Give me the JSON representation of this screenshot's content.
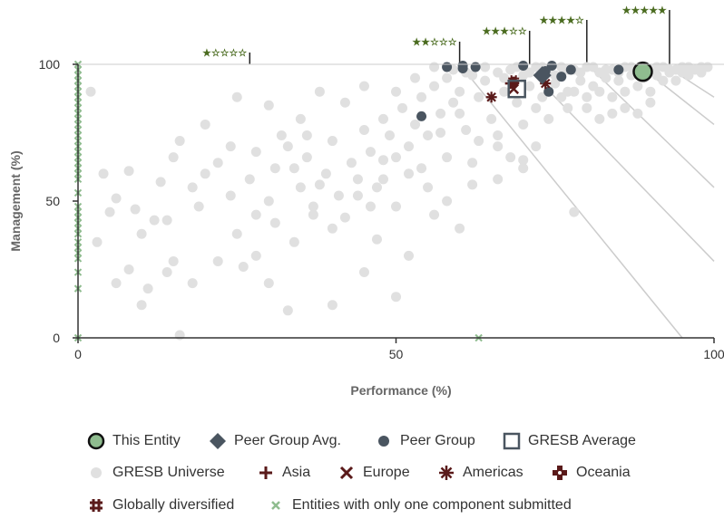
{
  "chart_data": {
    "type": "scatter",
    "xlabel": "Performance (%)",
    "ylabel": "Management (%)",
    "xlim": [
      0,
      100
    ],
    "ylim": [
      0,
      100
    ],
    "x_ticks": [
      "0",
      "50",
      "100"
    ],
    "y_ticks": [
      "0",
      "50",
      "100"
    ],
    "grid": false,
    "star_bands": [
      {
        "rating": 1,
        "label": "★☆☆☆☆",
        "boundary_x": 27
      },
      {
        "rating": 2,
        "label": "★★☆☆☆",
        "boundary_x": 60
      },
      {
        "rating": 3,
        "label": "★★★☆☆",
        "boundary_x": 71
      },
      {
        "rating": 4,
        "label": "★★★★☆",
        "boundary_x": 80
      },
      {
        "rating": 5,
        "label": "★★★★★",
        "boundary_x": 93
      }
    ],
    "series": [
      {
        "name": "This Entity",
        "color": "#8fbc8f",
        "points": [
          [
            88.8,
            97.3
          ]
        ]
      },
      {
        "name": "Peer Group Avg.",
        "color": "#4a5560",
        "points": [
          [
            73,
            96
          ]
        ]
      },
      {
        "name": "Peer Group",
        "color": "#4a5560",
        "points": [
          [
            58,
            99
          ],
          [
            60.5,
            99.5
          ],
          [
            60.5,
            98.5
          ],
          [
            62.5,
            99
          ],
          [
            70,
            99.5
          ],
          [
            73.5,
            97.5
          ],
          [
            74.5,
            99.5
          ],
          [
            76,
            95.5
          ],
          [
            77.5,
            98
          ],
          [
            74,
            90
          ],
          [
            85,
            98
          ],
          [
            54,
            81
          ]
        ]
      },
      {
        "name": "GRESB Average",
        "color": "#4a5560",
        "points": [
          [
            69,
            91
          ]
        ]
      },
      {
        "name": "GRESB Universe",
        "color": "#e0e0e0",
        "points": [
          [
            5,
            46
          ],
          [
            6,
            51
          ],
          [
            8,
            61
          ],
          [
            9,
            47
          ],
          [
            10,
            38
          ],
          [
            12,
            43
          ],
          [
            13,
            57
          ],
          [
            15,
            66
          ],
          [
            16,
            72
          ],
          [
            18,
            55
          ],
          [
            19,
            48
          ],
          [
            20,
            60
          ],
          [
            22,
            64
          ],
          [
            24,
            52
          ],
          [
            27,
            58
          ],
          [
            28,
            45
          ],
          [
            30,
            50
          ],
          [
            31,
            62
          ],
          [
            33,
            70
          ],
          [
            35,
            55
          ],
          [
            36,
            66
          ],
          [
            37,
            48
          ],
          [
            39,
            60
          ],
          [
            40,
            72
          ],
          [
            41,
            52
          ],
          [
            43,
            64
          ],
          [
            44,
            58
          ],
          [
            45,
            76
          ],
          [
            46,
            68
          ],
          [
            47,
            55
          ],
          [
            48,
            80
          ],
          [
            49,
            74
          ],
          [
            50,
            66
          ],
          [
            51,
            84
          ],
          [
            52,
            70
          ],
          [
            53,
            78
          ],
          [
            54,
            88
          ],
          [
            55,
            74
          ],
          [
            56,
            92
          ],
          [
            57,
            82
          ],
          [
            58,
            95
          ],
          [
            59,
            86
          ],
          [
            60,
            90
          ],
          [
            61,
            76
          ],
          [
            62,
            96
          ],
          [
            63,
            88
          ],
          [
            64,
            94
          ],
          [
            65,
            80
          ],
          [
            66,
            97
          ],
          [
            67,
            90
          ],
          [
            68,
            98
          ],
          [
            69,
            86
          ],
          [
            70,
            96
          ],
          [
            71,
            92
          ],
          [
            72,
            99
          ],
          [
            73,
            88
          ],
          [
            74,
            97
          ],
          [
            75,
            93
          ],
          [
            76,
            99
          ],
          [
            77,
            90
          ],
          [
            78,
            98
          ],
          [
            79,
            94
          ],
          [
            80,
            99
          ],
          [
            81,
            92
          ],
          [
            82,
            97
          ],
          [
            83,
            95
          ],
          [
            84,
            98
          ],
          [
            85,
            94
          ],
          [
            86,
            99
          ],
          [
            87,
            96
          ],
          [
            88,
            98
          ],
          [
            89,
            95
          ],
          [
            90,
            98
          ],
          [
            91,
            96
          ],
          [
            92,
            99
          ],
          [
            93,
            97
          ],
          [
            94,
            98
          ],
          [
            95,
            97
          ],
          [
            96,
            99
          ],
          [
            97,
            98
          ],
          [
            98,
            99
          ],
          [
            99,
            99
          ],
          [
            57,
            75
          ],
          [
            60,
            82
          ],
          [
            63,
            72
          ],
          [
            66,
            70
          ],
          [
            68,
            66
          ],
          [
            70,
            65
          ],
          [
            72,
            70
          ],
          [
            74,
            80
          ],
          [
            77,
            84
          ],
          [
            80,
            84
          ],
          [
            82,
            80
          ],
          [
            84,
            82
          ],
          [
            86,
            84
          ],
          [
            88,
            82
          ],
          [
            90,
            86
          ],
          [
            78,
            46
          ],
          [
            70,
            62
          ],
          [
            66,
            58
          ],
          [
            62,
            56
          ],
          [
            58,
            50
          ],
          [
            55,
            55
          ],
          [
            52,
            60
          ],
          [
            48,
            65
          ],
          [
            44,
            52
          ],
          [
            40,
            40
          ],
          [
            37,
            45
          ],
          [
            34,
            35
          ],
          [
            31,
            42
          ],
          [
            28,
            30
          ],
          [
            25,
            38
          ],
          [
            22,
            28
          ],
          [
            18,
            20
          ],
          [
            14,
            24
          ],
          [
            11,
            18
          ],
          [
            8,
            25
          ],
          [
            6,
            20
          ],
          [
            3,
            35
          ],
          [
            4,
            60
          ],
          [
            2,
            90
          ],
          [
            14,
            43
          ],
          [
            20,
            78
          ],
          [
            25,
            88
          ],
          [
            30,
            85
          ],
          [
            35,
            80
          ],
          [
            38,
            90
          ],
          [
            42,
            86
          ],
          [
            45,
            92
          ],
          [
            50,
            90
          ],
          [
            53,
            95
          ],
          [
            56,
            99
          ],
          [
            59,
            98
          ],
          [
            61,
            97
          ],
          [
            64,
            99
          ],
          [
            67,
            95
          ],
          [
            69,
            99
          ],
          [
            71,
            97
          ],
          [
            73,
            99
          ],
          [
            75,
            96
          ],
          [
            77,
            98
          ],
          [
            79,
            97
          ],
          [
            81,
            99
          ],
          [
            83,
            98
          ],
          [
            85,
            97
          ],
          [
            87,
            99
          ],
          [
            89,
            98
          ],
          [
            91,
            99
          ],
          [
            93,
            98
          ],
          [
            95,
            99
          ],
          [
            30,
            20
          ],
          [
            40,
            12
          ],
          [
            45,
            24
          ],
          [
            50,
            15
          ],
          [
            33,
            10
          ],
          [
            26,
            26
          ],
          [
            15,
            28
          ],
          [
            10,
            12
          ],
          [
            16,
            1
          ],
          [
            47,
            36
          ],
          [
            52,
            30
          ],
          [
            56,
            45
          ],
          [
            60,
            40
          ],
          [
            46,
            48
          ],
          [
            42,
            44
          ],
          [
            38,
            56
          ],
          [
            34,
            62
          ],
          [
            32,
            74
          ],
          [
            28,
            68
          ],
          [
            24,
            70
          ],
          [
            36,
            74
          ],
          [
            48,
            58
          ],
          [
            50,
            48
          ],
          [
            54,
            62
          ],
          [
            58,
            66
          ],
          [
            62,
            64
          ],
          [
            66,
            74
          ],
          [
            70,
            78
          ],
          [
            72,
            84
          ],
          [
            76,
            88
          ],
          [
            78,
            90
          ],
          [
            80,
            88
          ],
          [
            82,
            90
          ],
          [
            84,
            88
          ],
          [
            86,
            90
          ],
          [
            88,
            92
          ],
          [
            90,
            90
          ],
          [
            92,
            94
          ],
          [
            94,
            94
          ],
          [
            96,
            96
          ],
          [
            98,
            97
          ]
        ]
      },
      {
        "name": "Asia",
        "color": "#5a1a1a",
        "points": [
          [
            68,
            93
          ]
        ]
      },
      {
        "name": "Europe",
        "color": "#5a1a1a",
        "points": [
          [
            68.5,
            91
          ]
        ]
      },
      {
        "name": "Americas",
        "color": "#5a1a1a",
        "points": [
          [
            65,
            88
          ],
          [
            73.5,
            93
          ]
        ]
      },
      {
        "name": "Oceania",
        "color": "#5a1a1a",
        "points": [
          [
            68.5,
            93.5
          ]
        ]
      },
      {
        "name": "Globally diversified",
        "color": "#5a1a1a",
        "points": [
          [
            68.5,
            94
          ]
        ]
      },
      {
        "name": "Entities with only one component submitted",
        "color": "#8fbc8f",
        "points": [
          [
            0,
            100
          ],
          [
            0,
            98
          ],
          [
            0,
            96
          ],
          [
            0,
            94
          ],
          [
            0,
            92
          ],
          [
            0,
            90
          ],
          [
            0,
            88
          ],
          [
            0,
            86
          ],
          [
            0,
            84
          ],
          [
            0,
            82
          ],
          [
            0,
            80
          ],
          [
            0,
            78
          ],
          [
            0,
            76
          ],
          [
            0,
            74
          ],
          [
            0,
            72
          ],
          [
            0,
            70
          ],
          [
            0,
            68
          ],
          [
            0,
            66
          ],
          [
            0,
            64
          ],
          [
            0,
            62
          ],
          [
            0,
            60
          ],
          [
            0,
            58
          ],
          [
            0,
            53
          ],
          [
            0,
            48
          ],
          [
            0,
            46
          ],
          [
            0,
            44
          ],
          [
            0,
            42
          ],
          [
            0,
            40
          ],
          [
            0,
            38
          ],
          [
            0,
            35
          ],
          [
            0,
            33
          ],
          [
            0,
            31
          ],
          [
            0,
            29
          ],
          [
            0,
            24
          ],
          [
            0,
            18
          ],
          [
            0,
            0
          ],
          [
            63,
            0
          ]
        ]
      }
    ]
  },
  "legend": {
    "this_entity": "This Entity",
    "peer_group_avg": "Peer Group Avg.",
    "peer_group": "Peer Group",
    "gresb_average": "GRESB Average",
    "gresb_universe": "GRESB Universe",
    "asia": "Asia",
    "europe": "Europe",
    "americas": "Americas",
    "oceania": "Oceania",
    "globally_diversified": "Globally diversified",
    "one_component": "Entities with only one component submitted"
  },
  "colors": {
    "star": "#4a6b1f",
    "universe": "#e0e0e0",
    "peer": "#4a5560",
    "region": "#5a1a1a",
    "entity": "#8fbc8f",
    "axis": "#333333",
    "diagonal": "#cccccc"
  }
}
